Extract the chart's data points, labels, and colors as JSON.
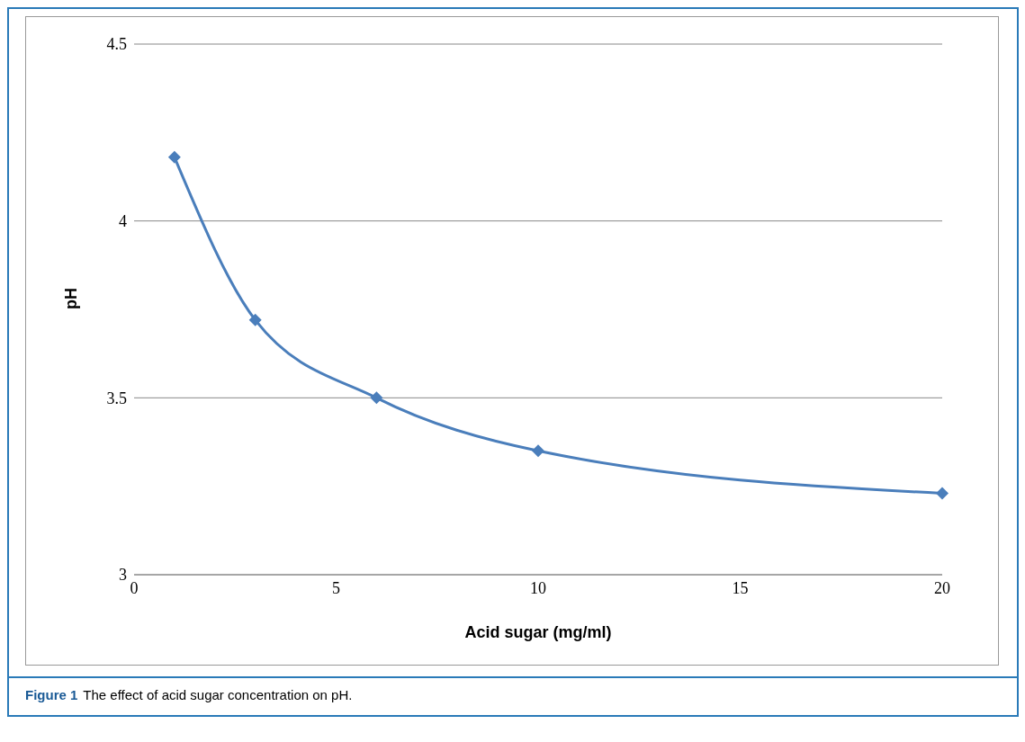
{
  "chart_data": {
    "type": "line",
    "xlabel": "Acid sugar (mg/ml)",
    "ylabel": "pH",
    "x": [
      1,
      3,
      6,
      10,
      20
    ],
    "series": [
      {
        "color": "#4a7ebb",
        "values": [
          4.18,
          3.72,
          3.5,
          3.35,
          3.23
        ]
      }
    ],
    "xlim": [
      0,
      20
    ],
    "xticks": [
      0,
      5,
      10,
      15,
      20
    ],
    "ylim": [
      3,
      4.5
    ],
    "yticks": [
      3,
      3.5,
      4,
      4.5
    ],
    "grid": "y",
    "marker": "diamond",
    "line_style": "solid",
    "annotations": [
      "Figure 1",
      "The effect of acid sugar concentration on pH."
    ]
  }
}
